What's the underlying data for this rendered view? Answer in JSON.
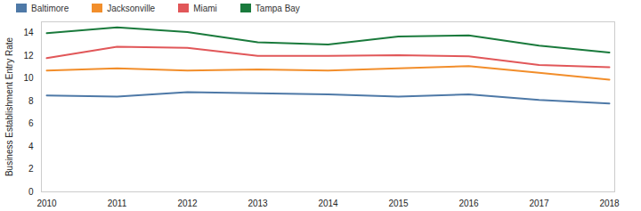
{
  "chart_data": {
    "type": "line",
    "y_label": "Business Establishment Entry Rate",
    "categories": [
      "2010",
      "2011",
      "2012",
      "2013",
      "2014",
      "2015",
      "2016",
      "2017",
      "2018"
    ],
    "series": [
      {
        "name": "Baltimore",
        "color": "#4e79a7",
        "values": [
          8.5,
          8.4,
          8.8,
          8.7,
          8.6,
          8.4,
          8.6,
          8.1,
          7.8
        ]
      },
      {
        "name": "Jacksonville",
        "color": "#f28e2b",
        "values": [
          10.7,
          10.9,
          10.7,
          10.8,
          10.7,
          10.9,
          11.1,
          10.5,
          9.9
        ]
      },
      {
        "name": "Miami",
        "color": "#e15759",
        "values": [
          11.8,
          12.8,
          12.7,
          12.0,
          12.0,
          12.05,
          11.95,
          11.2,
          11.0
        ]
      },
      {
        "name": "Tampa Bay",
        "color": "#1a7a3c",
        "values": [
          14.0,
          14.5,
          14.1,
          13.2,
          13.0,
          13.7,
          13.8,
          12.9,
          12.3
        ]
      }
    ],
    "ylim": [
      0,
      15
    ],
    "yticks": [
      0,
      2,
      4,
      6,
      8,
      10,
      12,
      14
    ],
    "grid": false,
    "legend": "top-left"
  }
}
